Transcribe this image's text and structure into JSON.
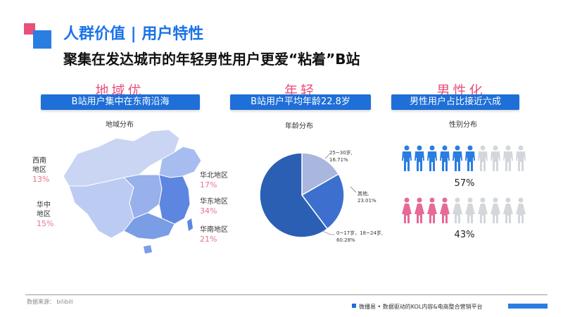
{
  "header": {
    "title": "人群价值 | 用户特性",
    "subtitle": "聚集在发达城市的年轻男性用户更爱“粘着”B站"
  },
  "sections": [
    {
      "heading": "地域优",
      "pill": "B站用户集中在东南沿海",
      "chart_title": "地域分布"
    },
    {
      "heading": "年轻",
      "pill": "B站用户平均年龄22.8岁",
      "chart_title": "年龄分布"
    },
    {
      "heading": "男性化",
      "pill": "男性用户占比接近六成",
      "chart_title": "性别分布"
    }
  ],
  "regions": [
    {
      "name_line1": "西南",
      "name_line2": "地区",
      "value": "13%"
    },
    {
      "name_line1": "华中",
      "name_line2": "地区",
      "value": "15%"
    },
    {
      "name_line1": "华北地区",
      "name_line2": "",
      "value": "17%"
    },
    {
      "name_line1": "华东地区",
      "name_line2": "",
      "value": "34%"
    },
    {
      "name_line1": "华南地区",
      "name_line2": "",
      "value": "21%"
    }
  ],
  "gender": {
    "male_pct": "57%",
    "female_pct": "43%",
    "male_filled": 6,
    "male_total": 10,
    "female_filled": 4,
    "female_total": 10
  },
  "chart_data": {
    "type": "pie",
    "slices": [
      {
        "label_line1": "0~17岁、18~24岁,",
        "label_line2": "60.28%",
        "value": 60.28,
        "color": "#2b5fb4"
      },
      {
        "label_line1": "25~30岁,",
        "label_line2": "16.71%",
        "value": 16.71,
        "color": "#a9b6dd"
      },
      {
        "label_line1": "其他,",
        "label_line2": "23.01%",
        "value": 23.01,
        "color": "#3d6fcf"
      }
    ]
  },
  "footer": {
    "source": "数据来源： bilibili",
    "brand": "微播易 • 数据驱动的KOL内容&电商整合营销平台"
  },
  "colors": {
    "accent": "#1f6fd8",
    "pink": "#e8507a",
    "male_icon": "#2a7de1",
    "female_icon": "#e56a98",
    "inactive_icon": "#d3d7dc"
  }
}
